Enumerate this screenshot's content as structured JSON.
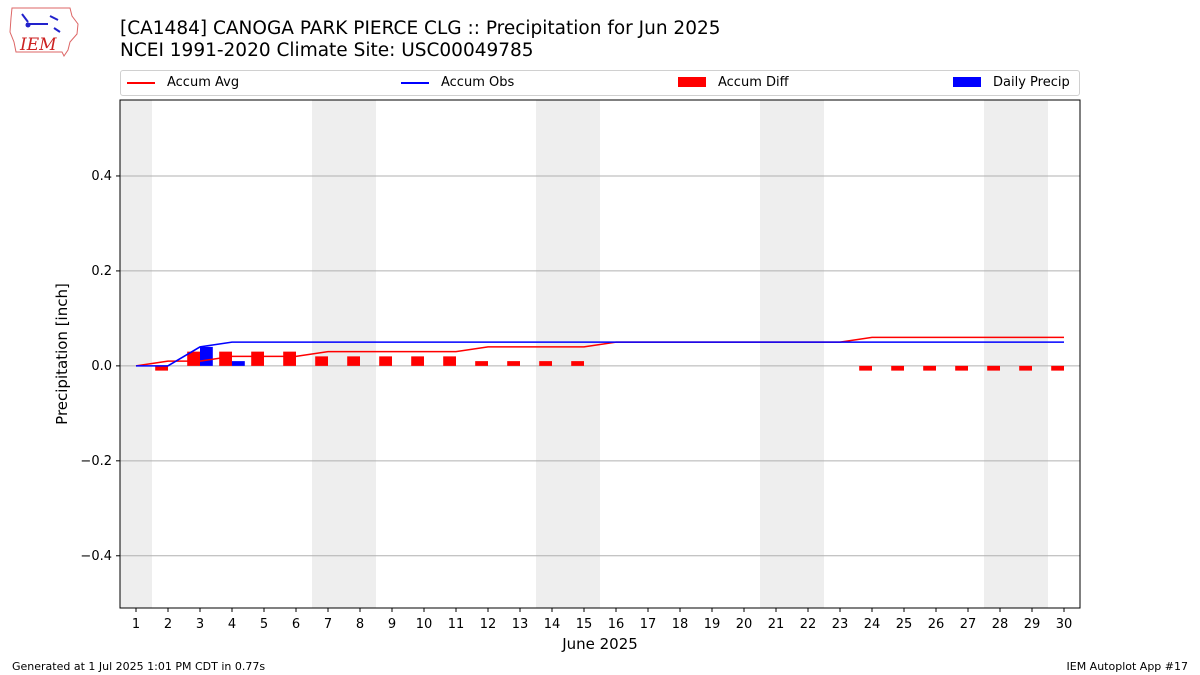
{
  "logo": {
    "text": "IEM"
  },
  "footer": {
    "generated": "Generated at 1 Jul 2025 1:01 PM CDT in 0.77s",
    "app": "IEM Autoplot App #17"
  },
  "colors": {
    "avg": "#ff0000",
    "obs": "#0000ff",
    "diff": "#ff0000",
    "daily": "#0000ff",
    "weekend": "#eeeeee",
    "grid": "#b0b0b0"
  },
  "chart_data": {
    "type": "bar",
    "title": "[CA1484] CANOGA PARK PIERCE CLG :: Precipitation for Jun 2025",
    "subtitle": "NCEI 1991-2020 Climate Site: USC00049785",
    "xlabel": "June 2025",
    "ylabel": "Precipitation [inch]",
    "ylim": [
      -0.51,
      0.56
    ],
    "xlim": [
      0.5,
      30.5
    ],
    "yticks": [
      -0.4,
      -0.2,
      0.0,
      0.2,
      0.4
    ],
    "ytick_labels": [
      "−0.4",
      "−0.2",
      "0.0",
      "0.2",
      "0.4"
    ],
    "grid": "horizontal",
    "legend": {
      "placement": "top",
      "entries": [
        "Accum Avg",
        "Accum Obs",
        "Accum Diff",
        "Daily Precip"
      ]
    },
    "days": [
      1,
      2,
      3,
      4,
      5,
      6,
      7,
      8,
      9,
      10,
      11,
      12,
      13,
      14,
      15,
      16,
      17,
      18,
      19,
      20,
      21,
      22,
      23,
      24,
      25,
      26,
      27,
      28,
      29,
      30
    ],
    "weekend_spans": [
      [
        0.5,
        1.5
      ],
      [
        6.5,
        8.5
      ],
      [
        13.5,
        15.5
      ],
      [
        20.5,
        22.5
      ],
      [
        27.5,
        29.5
      ]
    ],
    "series": [
      {
        "name": "Accum Avg",
        "kind": "line",
        "values": [
          0.0,
          0.01,
          0.01,
          0.02,
          0.02,
          0.02,
          0.03,
          0.03,
          0.03,
          0.03,
          0.03,
          0.04,
          0.04,
          0.04,
          0.04,
          0.05,
          0.05,
          0.05,
          0.05,
          0.05,
          0.05,
          0.05,
          0.05,
          0.06,
          0.06,
          0.06,
          0.06,
          0.06,
          0.06,
          0.06
        ]
      },
      {
        "name": "Accum Obs",
        "kind": "line",
        "values": [
          0.0,
          0.0,
          0.04,
          0.05,
          0.05,
          0.05,
          0.05,
          0.05,
          0.05,
          0.05,
          0.05,
          0.05,
          0.05,
          0.05,
          0.05,
          0.05,
          0.05,
          0.05,
          0.05,
          0.05,
          0.05,
          0.05,
          0.05,
          0.05,
          0.05,
          0.05,
          0.05,
          0.05,
          0.05,
          0.05
        ]
      },
      {
        "name": "Accum Diff",
        "kind": "bar",
        "values": [
          0.0,
          -0.01,
          0.03,
          0.03,
          0.03,
          0.03,
          0.02,
          0.02,
          0.02,
          0.02,
          0.02,
          0.01,
          0.01,
          0.01,
          0.01,
          0.0,
          0.0,
          0.0,
          0.0,
          0.0,
          0.0,
          0.0,
          0.0,
          -0.01,
          -0.01,
          -0.01,
          -0.01,
          -0.01,
          -0.01,
          -0.01
        ]
      },
      {
        "name": "Daily Precip",
        "kind": "bar",
        "values": [
          0.0,
          0.0,
          0.04,
          0.01,
          0.0,
          0.0,
          0.0,
          0.0,
          0.0,
          0.0,
          0.0,
          0.0,
          0.0,
          0.0,
          0.0,
          0.0,
          0.0,
          0.0,
          0.0,
          0.0,
          0.0,
          0.0,
          0.0,
          0.0,
          0.0,
          0.0,
          0.0,
          0.0,
          0.0,
          0.0
        ]
      }
    ]
  }
}
